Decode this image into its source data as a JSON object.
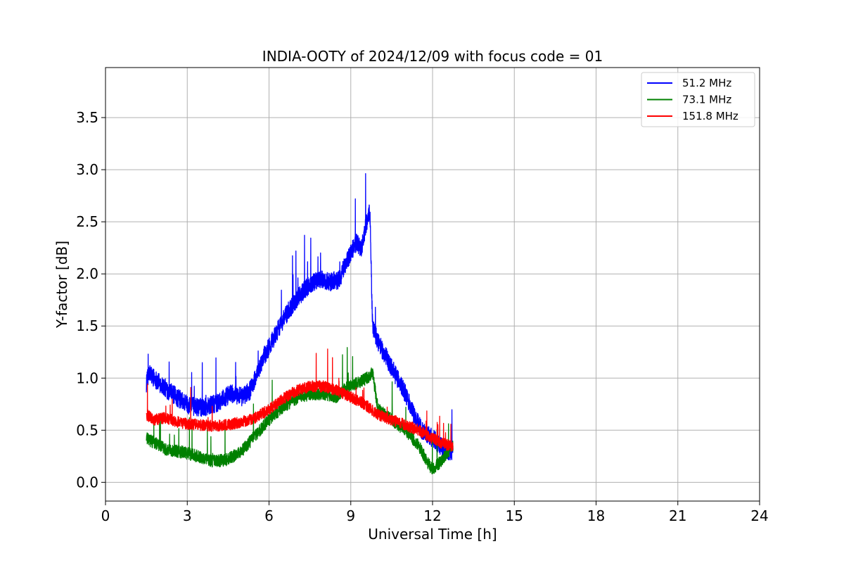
{
  "chart_data": {
    "type": "line",
    "title": "INDIA-OOTY of 2024/12/09 with focus code = 01",
    "xlabel": "Universal Time [h]",
    "ylabel": "Y-factor [dB]",
    "xlim": [
      0,
      24
    ],
    "ylim": [
      -0.18,
      3.98
    ],
    "xticks": [
      0,
      3,
      6,
      9,
      12,
      15,
      18,
      21,
      24
    ],
    "yticks": [
      0.0,
      0.5,
      1.0,
      1.5,
      2.0,
      2.5,
      3.0,
      3.5
    ],
    "xtick_labels": [
      "0",
      "3",
      "6",
      "9",
      "12",
      "15",
      "18",
      "21",
      "24"
    ],
    "ytick_labels": [
      "0.0",
      "0.5",
      "1.0",
      "1.5",
      "2.0",
      "2.5",
      "3.0",
      "3.5"
    ],
    "grid": true,
    "legend_position": "top-right",
    "series": [
      {
        "name": "51.2 MHz",
        "color": "#0000ff",
        "noise": 0.09,
        "x": [
          1.5,
          1.6,
          1.8,
          2.0,
          2.3,
          2.6,
          3.0,
          3.3,
          3.6,
          4.0,
          4.3,
          4.6,
          5.0,
          5.3,
          5.6,
          5.8,
          6.0,
          6.3,
          6.6,
          7.0,
          7.3,
          7.6,
          7.9,
          8.2,
          8.6,
          8.8,
          9.0,
          9.2,
          9.4,
          9.5,
          9.6,
          9.7,
          9.8,
          10.0,
          10.3,
          10.6,
          11.0,
          11.3,
          11.6,
          12.0,
          12.3,
          12.5,
          12.75
        ],
        "y": [
          0.95,
          1.05,
          1.0,
          0.95,
          0.88,
          0.82,
          0.75,
          0.72,
          0.72,
          0.75,
          0.8,
          0.85,
          0.82,
          0.88,
          1.05,
          1.2,
          1.3,
          1.45,
          1.6,
          1.75,
          1.85,
          1.92,
          1.95,
          1.92,
          1.95,
          2.1,
          2.2,
          2.3,
          2.25,
          2.4,
          2.5,
          2.6,
          1.5,
          1.35,
          1.2,
          1.05,
          0.85,
          0.65,
          0.5,
          0.42,
          0.35,
          0.3,
          0.3
        ]
      },
      {
        "name": "73.1 MHz",
        "color": "#008000",
        "noise": 0.06,
        "x": [
          1.5,
          1.8,
          2.2,
          2.6,
          3.0,
          3.5,
          4.0,
          4.5,
          5.0,
          5.5,
          6.0,
          6.5,
          7.0,
          7.5,
          8.0,
          8.5,
          8.8,
          9.2,
          9.6,
          9.8,
          10.0,
          10.5,
          11.0,
          11.5,
          11.8,
          12.0,
          12.3,
          12.75
        ],
        "y": [
          0.42,
          0.38,
          0.32,
          0.3,
          0.28,
          0.24,
          0.2,
          0.22,
          0.3,
          0.45,
          0.6,
          0.72,
          0.8,
          0.85,
          0.85,
          0.82,
          0.9,
          0.95,
          1.0,
          1.05,
          0.7,
          0.6,
          0.5,
          0.35,
          0.2,
          0.12,
          0.2,
          0.35
        ]
      },
      {
        "name": "151.8 MHz",
        "color": "#ff0000",
        "noise": 0.055,
        "x": [
          1.5,
          1.8,
          2.2,
          2.6,
          3.0,
          3.5,
          4.0,
          4.5,
          5.0,
          5.5,
          6.0,
          6.5,
          7.0,
          7.5,
          8.0,
          8.5,
          9.0,
          9.5,
          10.0,
          10.5,
          11.0,
          11.5,
          12.0,
          12.5,
          12.75
        ],
        "y": [
          0.65,
          0.6,
          0.62,
          0.58,
          0.56,
          0.55,
          0.54,
          0.55,
          0.58,
          0.62,
          0.7,
          0.8,
          0.88,
          0.92,
          0.92,
          0.88,
          0.82,
          0.75,
          0.65,
          0.6,
          0.55,
          0.5,
          0.42,
          0.36,
          0.35
        ]
      }
    ]
  }
}
